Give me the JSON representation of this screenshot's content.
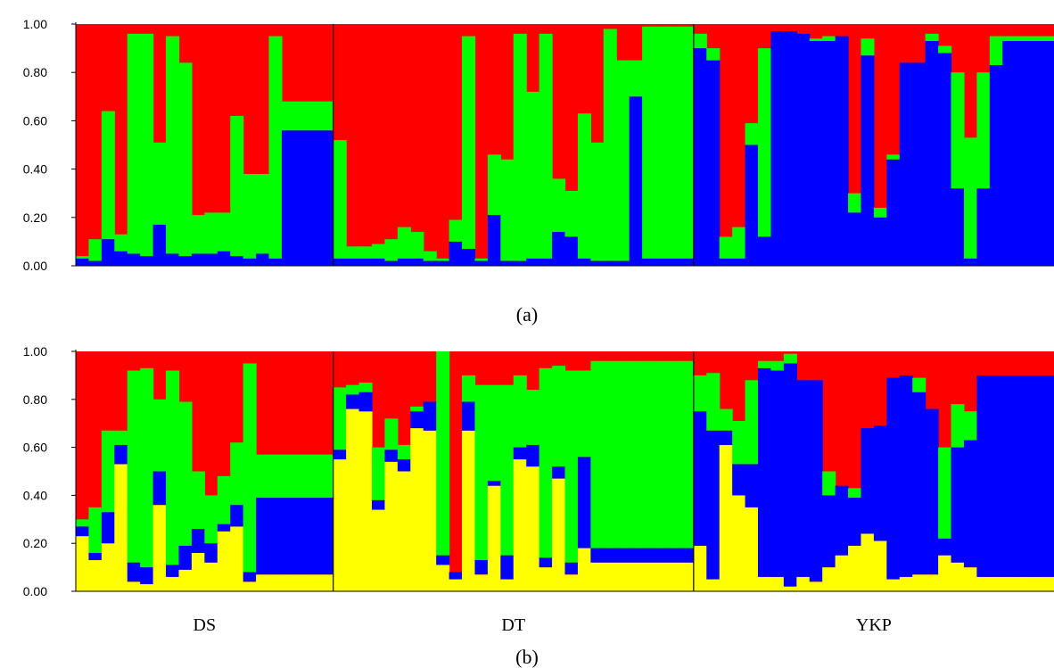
{
  "colors": {
    "red": "#ff0000",
    "green": "#00ff00",
    "blue": "#0000ff",
    "yellow": "#ffff00"
  },
  "chart_data": [
    {
      "type": "bar",
      "stacked": true,
      "panel": "a",
      "panel_label": "(a)",
      "ylim": [
        0,
        1
      ],
      "yticks": [
        "0.00",
        "0.20",
        "0.40",
        "0.60",
        "0.80",
        "1.00"
      ],
      "populations": [
        {
          "name": "DS",
          "count": 20
        },
        {
          "name": "DT",
          "count": 28
        },
        {
          "name": "YKP",
          "count": 28
        }
      ],
      "series": [
        {
          "color": "#0000ff",
          "values": [
            0.03,
            0.02,
            0.11,
            0.06,
            0.05,
            0.04,
            0.17,
            0.05,
            0.04,
            0.05,
            0.05,
            0.06,
            0.04,
            0.03,
            0.05,
            0.03,
            0.56,
            0.56,
            0.56,
            0.56,
            0.03,
            0.03,
            0.03,
            0.03,
            0.02,
            0.03,
            0.03,
            0.02,
            0.02,
            0.1,
            0.07,
            0.02,
            0.21,
            0.02,
            0.02,
            0.03,
            0.03,
            0.14,
            0.12,
            0.03,
            0.02,
            0.02,
            0.02,
            0.7,
            0.03,
            0.03,
            0.03,
            0.03,
            0.9,
            0.85,
            0.03,
            0.03,
            0.5,
            0.12,
            0.97,
            0.97,
            0.96,
            0.93,
            0.93,
            0.95,
            0.22,
            0.87,
            0.2,
            0.44,
            0.84,
            0.84,
            0.93,
            0.88,
            0.32,
            0.03,
            0.32,
            0.83,
            0.93,
            0.93,
            0.93,
            0.93
          ]
        },
        {
          "color": "#00ff00",
          "values": [
            0.01,
            0.09,
            0.53,
            0.07,
            0.91,
            0.92,
            0.34,
            0.9,
            0.8,
            0.16,
            0.17,
            0.16,
            0.58,
            0.35,
            0.33,
            0.92,
            0.12,
            0.12,
            0.12,
            0.12,
            0.49,
            0.05,
            0.05,
            0.06,
            0.09,
            0.13,
            0.11,
            0.04,
            0.01,
            0.09,
            0.88,
            0.01,
            0.25,
            0.42,
            0.94,
            0.69,
            0.93,
            0.22,
            0.19,
            0.6,
            0.49,
            0.96,
            0.83,
            0.15,
            0.96,
            0.96,
            0.96,
            0.96,
            0.06,
            0.05,
            0.09,
            0.13,
            0.09,
            0.78,
            0.0,
            0.0,
            0.0,
            0.01,
            0.02,
            0.0,
            0.08,
            0.07,
            0.04,
            0.02,
            0.0,
            0.0,
            0.03,
            0.03,
            0.48,
            0.5,
            0.48,
            0.12,
            0.02,
            0.02,
            0.02,
            0.02
          ]
        }
      ]
    },
    {
      "type": "bar",
      "stacked": true,
      "panel": "b",
      "panel_label": "(b)",
      "ylim": [
        0,
        1
      ],
      "yticks": [
        "0.00",
        "0.20",
        "0.40",
        "0.60",
        "0.80",
        "1.00"
      ],
      "populations": [
        {
          "name": "DS",
          "count": 20
        },
        {
          "name": "DT",
          "count": 28
        },
        {
          "name": "YKP",
          "count": 28
        }
      ],
      "series": [
        {
          "color": "#ffff00",
          "values": [
            0.23,
            0.13,
            0.2,
            0.53,
            0.04,
            0.03,
            0.36,
            0.06,
            0.09,
            0.16,
            0.12,
            0.25,
            0.27,
            0.04,
            0.07,
            0.07,
            0.07,
            0.07,
            0.07,
            0.07,
            0.55,
            0.76,
            0.75,
            0.34,
            0.54,
            0.5,
            0.68,
            0.67,
            0.11,
            0.05,
            0.67,
            0.07,
            0.44,
            0.05,
            0.55,
            0.52,
            0.1,
            0.47,
            0.07,
            0.18,
            0.12,
            0.12,
            0.12,
            0.12,
            0.12,
            0.12,
            0.12,
            0.12,
            0.19,
            0.05,
            0.61,
            0.4,
            0.35,
            0.06,
            0.06,
            0.02,
            0.06,
            0.04,
            0.1,
            0.15,
            0.19,
            0.24,
            0.21,
            0.05,
            0.06,
            0.07,
            0.07,
            0.15,
            0.12,
            0.1,
            0.06,
            0.06,
            0.06,
            0.06,
            0.06,
            0.06
          ]
        },
        {
          "color": "#0000ff",
          "values": [
            0.04,
            0.03,
            0.13,
            0.08,
            0.08,
            0.07,
            0.14,
            0.05,
            0.1,
            0.1,
            0.08,
            0.03,
            0.09,
            0.04,
            0.32,
            0.32,
            0.32,
            0.32,
            0.32,
            0.32,
            0.04,
            0.06,
            0.08,
            0.04,
            0.05,
            0.05,
            0.07,
            0.12,
            0.04,
            0.03,
            0.12,
            0.06,
            0.02,
            0.1,
            0.05,
            0.09,
            0.04,
            0.05,
            0.05,
            0.38,
            0.06,
            0.06,
            0.06,
            0.06,
            0.06,
            0.06,
            0.06,
            0.06,
            0.56,
            0.62,
            0.06,
            0.13,
            0.18,
            0.87,
            0.86,
            0.93,
            0.82,
            0.84,
            0.3,
            0.29,
            0.2,
            0.44,
            0.48,
            0.84,
            0.84,
            0.76,
            0.69,
            0.07,
            0.48,
            0.53,
            0.84,
            0.84,
            0.84,
            0.84,
            0.84,
            0.84
          ]
        },
        {
          "color": "#00ff00",
          "values": [
            0.03,
            0.19,
            0.34,
            0.06,
            0.8,
            0.83,
            0.3,
            0.81,
            0.6,
            0.24,
            0.2,
            0.2,
            0.26,
            0.87,
            0.18,
            0.18,
            0.18,
            0.18,
            0.18,
            0.18,
            0.26,
            0.04,
            0.04,
            0.22,
            0.13,
            0.06,
            0.02,
            0.0,
            0.85,
            0.0,
            0.11,
            0.73,
            0.4,
            0.71,
            0.3,
            0.23,
            0.79,
            0.42,
            0.8,
            0.36,
            0.78,
            0.78,
            0.78,
            0.78,
            0.78,
            0.78,
            0.78,
            0.78,
            0.15,
            0.24,
            0.09,
            0.18,
            0.35,
            0.03,
            0.04,
            0.04,
            0.0,
            0.0,
            0.1,
            0.0,
            0.04,
            0.0,
            0.0,
            0.0,
            0.0,
            0.06,
            0.0,
            0.38,
            0.18,
            0.12,
            0.0,
            0.0,
            0.0,
            0.0,
            0.0,
            0.0
          ]
        }
      ]
    }
  ]
}
